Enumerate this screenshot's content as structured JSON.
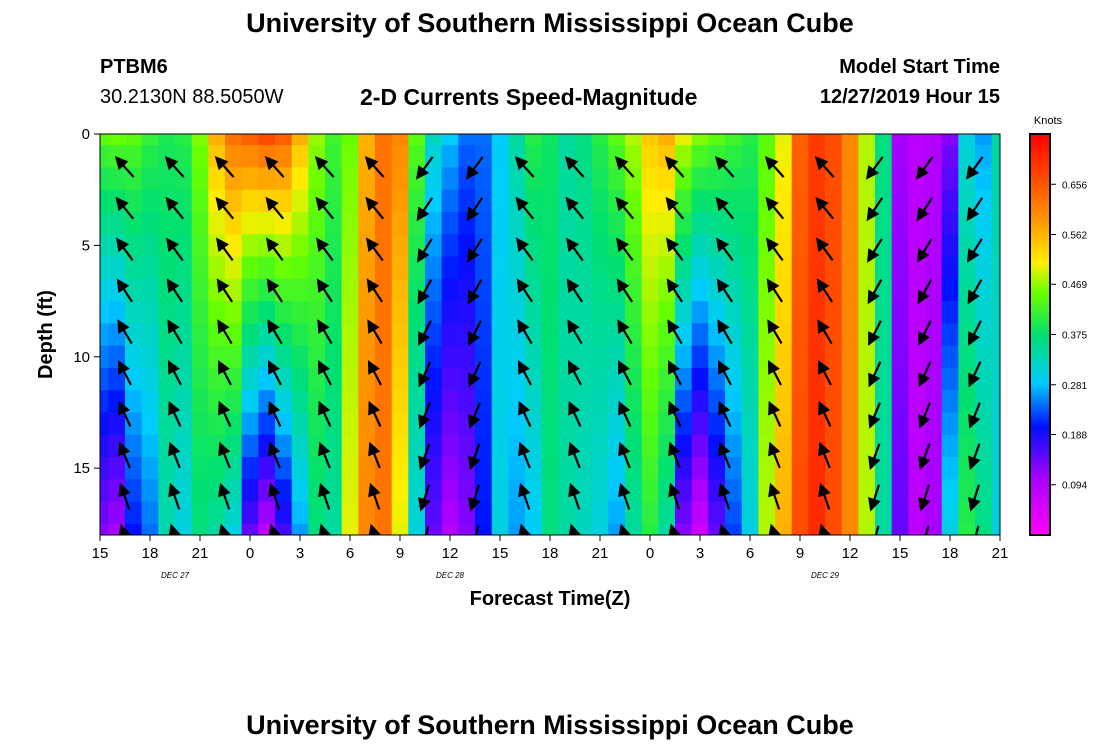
{
  "page": {
    "title_top": "University of Southern Mississippi Ocean Cube",
    "title_bottom": "University of Southern Mississippi Ocean Cube",
    "station_id": "PTBM6",
    "station_coords": "30.2130N 88.5050W",
    "chart_title": "2-D Currents Speed-Magnitude",
    "model_start_label": "Model Start Time",
    "model_start_value": "12/27/2019 Hour 15"
  },
  "chart_data": {
    "type": "heatmap",
    "title": "2-D Currents Speed-Magnitude",
    "xlabel": "Forecast Time(Z)",
    "ylabel": "Depth (ft)",
    "x_ticks": [
      "15",
      "18",
      "21",
      "0",
      "3",
      "6",
      "9",
      "12",
      "15",
      "18",
      "21",
      "0",
      "3",
      "6",
      "9",
      "12",
      "15",
      "18",
      "21"
    ],
    "x_tick_hours": [
      0,
      3,
      6,
      9,
      12,
      15,
      18,
      21,
      24,
      27,
      30,
      33,
      36,
      39,
      42,
      45,
      48,
      51,
      54
    ],
    "date_labels": [
      {
        "text": "DEC 27",
        "hour": 4.5
      },
      {
        "text": "DEC 28",
        "hour": 21
      },
      {
        "text": "DEC 29",
        "hour": 43.5
      }
    ],
    "x_range_hours": [
      0,
      54
    ],
    "y_ticks": [
      "0",
      "5",
      "10",
      "15"
    ],
    "y_tick_values": [
      0,
      5,
      10,
      15
    ],
    "y_range_ft": [
      0,
      18
    ],
    "colorbar": {
      "label": "Knots",
      "range": [
        0,
        0.75
      ],
      "ticks": [
        "0.656",
        "0.562",
        "0.469",
        "0.375",
        "0.281",
        "0.188",
        "0.094"
      ],
      "tick_values": [
        0.656,
        0.562,
        0.469,
        0.375,
        0.281,
        0.188,
        0.094
      ]
    },
    "speed_profile_knots": {
      "hours": [
        0,
        1,
        2,
        3,
        4,
        5,
        6,
        7,
        8,
        9,
        10,
        11,
        12,
        13,
        14,
        15,
        16,
        17,
        18,
        19,
        20,
        21,
        22,
        23,
        24,
        25,
        26,
        27,
        28,
        29,
        30,
        31,
        32,
        33,
        34,
        35,
        36,
        37,
        38,
        39,
        40,
        41,
        42,
        43,
        44,
        45,
        46,
        47,
        48,
        49,
        50,
        51,
        52,
        53,
        54
      ],
      "surface": [
        0.44,
        0.45,
        0.44,
        0.41,
        0.39,
        0.4,
        0.46,
        0.56,
        0.62,
        0.64,
        0.66,
        0.64,
        0.56,
        0.47,
        0.42,
        0.45,
        0.56,
        0.62,
        0.6,
        0.44,
        0.32,
        0.28,
        0.24,
        0.24,
        0.28,
        0.34,
        0.4,
        0.38,
        0.34,
        0.36,
        0.4,
        0.44,
        0.48,
        0.54,
        0.56,
        0.5,
        0.46,
        0.44,
        0.42,
        0.4,
        0.44,
        0.5,
        0.64,
        0.68,
        0.66,
        0.6,
        0.48,
        0.36,
        0.1,
        0.08,
        0.09,
        0.12,
        0.3,
        0.26,
        0.34
      ],
      "bottom": [
        0.12,
        0.1,
        0.2,
        0.24,
        0.33,
        0.3,
        0.36,
        0.34,
        0.3,
        0.14,
        0.08,
        0.16,
        0.26,
        0.36,
        0.34,
        0.5,
        0.6,
        0.62,
        0.5,
        0.3,
        0.14,
        0.09,
        0.12,
        0.2,
        0.3,
        0.26,
        0.28,
        0.36,
        0.34,
        0.32,
        0.3,
        0.26,
        0.34,
        0.4,
        0.34,
        0.12,
        0.06,
        0.14,
        0.22,
        0.3,
        0.48,
        0.56,
        0.66,
        0.7,
        0.66,
        0.6,
        0.48,
        0.34,
        0.14,
        0.08,
        0.1,
        0.3,
        0.4,
        0.36,
        0.3
      ]
    }
  }
}
